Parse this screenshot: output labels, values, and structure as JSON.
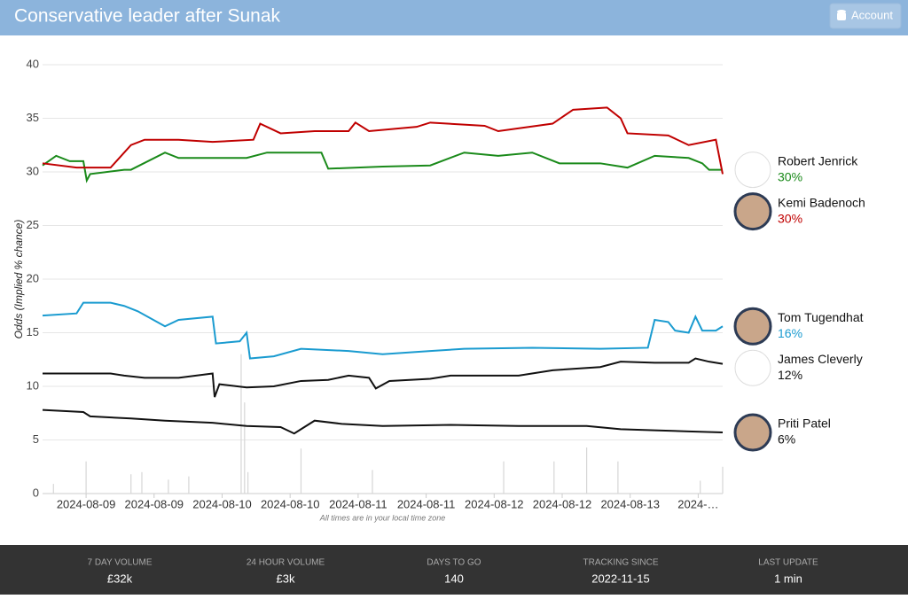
{
  "header": {
    "title": "Conservative leader after Sunak",
    "account": "Account"
  },
  "chart_data": {
    "type": "line",
    "y_label": "Odds (Implied % chance)",
    "note": "All times are in your local time zone",
    "xlim": [
      0,
      100
    ],
    "xticks": [
      {
        "value": 6.4,
        "label": "2024-08-09"
      },
      {
        "value": 16.4,
        "label": "2024-08-09"
      },
      {
        "value": 26.4,
        "label": "2024-08-10"
      },
      {
        "value": 36.4,
        "label": "2024-08-10"
      },
      {
        "value": 46.4,
        "label": "2024-08-11"
      },
      {
        "value": 56.4,
        "label": "2024-08-11"
      },
      {
        "value": 66.4,
        "label": "2024-08-12"
      },
      {
        "value": 76.4,
        "label": "2024-08-12"
      },
      {
        "value": 86.4,
        "label": "2024-08-13"
      },
      {
        "value": 96.4,
        "label": "2024-…"
      }
    ],
    "ylim": [
      0,
      40
    ],
    "yticks": [
      0,
      5,
      10,
      15,
      20,
      25,
      30,
      35,
      40
    ],
    "grid": true,
    "series": [
      {
        "name": "Robert Jenrick",
        "color": "#1a8a1a",
        "end_label": "30%",
        "x": [
          0,
          2,
          4,
          6,
          6.5,
          7,
          12,
          13,
          18,
          20,
          25,
          30,
          33,
          38,
          41,
          42,
          50,
          57,
          62,
          67,
          72,
          76,
          82,
          86,
          90,
          95,
          97,
          98,
          100
        ],
        "values": [
          30.6,
          31.5,
          31,
          31,
          29.2,
          29.8,
          30.2,
          30.2,
          31.8,
          31.3,
          31.3,
          31.3,
          31.8,
          31.8,
          31.8,
          30.3,
          30.5,
          30.6,
          31.8,
          31.5,
          31.8,
          30.8,
          30.8,
          30.4,
          31.5,
          31.3,
          30.8,
          30.2,
          30.2
        ]
      },
      {
        "name": "Kemi Badenoch",
        "color": "#c00000",
        "end_label": "30%",
        "x": [
          0,
          5,
          10,
          13,
          15,
          20,
          25,
          31,
          32,
          35,
          40,
          45,
          46,
          48,
          55,
          57,
          65,
          67,
          75,
          78,
          83,
          85,
          86,
          92,
          95,
          99,
          100
        ],
        "values": [
          30.8,
          30.4,
          30.4,
          32.5,
          33,
          33,
          32.8,
          33,
          34.5,
          33.6,
          33.8,
          33.8,
          34.6,
          33.8,
          34.2,
          34.6,
          34.3,
          33.8,
          34.5,
          35.8,
          36,
          35,
          33.6,
          33.4,
          32.5,
          33,
          29.8
        ]
      },
      {
        "name": "Tom Tugendhat",
        "color": "#1a9bd0",
        "end_label": "16%",
        "x": [
          0,
          5,
          6,
          10,
          12,
          14,
          18,
          20,
          25,
          25.5,
          29,
          30,
          30.5,
          34,
          38,
          45,
          50,
          57,
          62,
          72,
          82,
          89,
          90,
          92,
          93,
          95,
          96,
          97,
          99,
          100
        ],
        "values": [
          16.6,
          16.8,
          17.8,
          17.8,
          17.5,
          17,
          15.6,
          16.2,
          16.5,
          14,
          14.2,
          15,
          12.6,
          12.8,
          13.5,
          13.3,
          13,
          13.3,
          13.5,
          13.6,
          13.5,
          13.6,
          16.2,
          16,
          15.2,
          15,
          16.5,
          15.2,
          15.2,
          15.6
        ]
      },
      {
        "name": "James Cleverly",
        "color": "#111111",
        "end_label": "12%",
        "x": [
          0,
          10,
          12,
          15,
          20,
          25,
          25.3,
          26,
          30,
          34,
          38,
          42,
          45,
          48,
          49,
          51,
          57,
          60,
          70,
          75,
          82,
          85,
          90,
          95,
          96,
          98,
          100
        ],
        "values": [
          11.2,
          11.2,
          11,
          10.8,
          10.8,
          11.2,
          9,
          10.2,
          9.9,
          10,
          10.5,
          10.6,
          11,
          10.8,
          9.8,
          10.5,
          10.7,
          11,
          11,
          11.5,
          11.8,
          12.3,
          12.2,
          12.2,
          12.6,
          12.3,
          12.1
        ]
      },
      {
        "name": "Priti Patel",
        "color": "#111111",
        "end_label": "6%",
        "x": [
          0,
          6,
          7,
          13,
          18,
          25,
          30,
          35,
          37,
          38,
          40,
          44,
          50,
          60,
          70,
          80,
          85,
          90,
          95,
          100
        ],
        "values": [
          7.8,
          7.6,
          7.2,
          7,
          6.8,
          6.6,
          6.3,
          6.2,
          5.6,
          6,
          6.8,
          6.5,
          6.3,
          6.4,
          6.3,
          6.3,
          6,
          5.9,
          5.8,
          5.7
        ]
      }
    ],
    "volume": {
      "color": "#d6d6d6",
      "x": [
        1.6,
        6.4,
        13,
        14.6,
        18.5,
        21.5,
        29.2,
        29.7,
        30.2,
        38,
        48.5,
        67.8,
        75.2,
        80,
        84.6,
        96.7,
        100
      ],
      "values": [
        0.9,
        3,
        1.8,
        2,
        1.3,
        1.6,
        13,
        8.5,
        2,
        4.2,
        2.2,
        3,
        3,
        4.3,
        3,
        1.2,
        2.5
      ]
    }
  },
  "footer": {
    "stats": [
      {
        "label": "7 DAY VOLUME",
        "value": "£32k"
      },
      {
        "label": "24 HOUR VOLUME",
        "value": "£3k"
      },
      {
        "label": "DAYS TO GO",
        "value": "140"
      },
      {
        "label": "TRACKING SINCE",
        "value": "2022-11-15"
      },
      {
        "label": "LAST UPDATE",
        "value": "1 min"
      }
    ]
  }
}
